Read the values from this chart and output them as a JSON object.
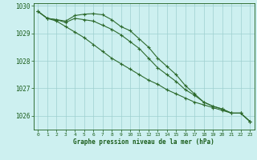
{
  "x": [
    0,
    1,
    2,
    3,
    4,
    5,
    6,
    7,
    8,
    9,
    10,
    11,
    12,
    13,
    14,
    15,
    16,
    17,
    18,
    19,
    20,
    21,
    22,
    23
  ],
  "line1": [
    1029.8,
    1029.55,
    1029.5,
    1029.45,
    1029.65,
    1029.7,
    1029.72,
    1029.68,
    1029.5,
    1029.25,
    1029.1,
    1028.8,
    1028.5,
    1028.1,
    1027.8,
    1027.5,
    1027.1,
    1026.8,
    1026.5,
    1026.35,
    1026.25,
    1026.1,
    1026.1,
    1025.8
  ],
  "line2": [
    1029.8,
    1029.55,
    1029.5,
    1029.4,
    1029.55,
    1029.5,
    1029.45,
    1029.3,
    1029.15,
    1028.95,
    1028.7,
    1028.45,
    1028.1,
    1027.75,
    1027.5,
    1027.25,
    1026.95,
    1026.75,
    1026.5,
    1026.35,
    1026.25,
    1026.1,
    1026.1,
    1025.8
  ],
  "line3": [
    1029.8,
    1029.55,
    1029.45,
    1029.25,
    1029.05,
    1028.85,
    1028.6,
    1028.35,
    1028.1,
    1027.9,
    1027.7,
    1027.5,
    1027.3,
    1027.15,
    1026.95,
    1026.8,
    1026.65,
    1026.5,
    1026.4,
    1026.3,
    1026.2,
    1026.1,
    1026.1,
    1025.8
  ],
  "line_color": "#2d6a2d",
  "bg_color": "#cdf0f0",
  "grid_color": "#9fcfcf",
  "label_color": "#1a5c1a",
  "xlabel": "Graphe pression niveau de la mer (hPa)",
  "ylim_min": 1025.5,
  "ylim_max": 1030.1,
  "yticks": [
    1026,
    1027,
    1028,
    1029,
    1030
  ],
  "xticks": [
    0,
    1,
    2,
    3,
    4,
    5,
    6,
    7,
    8,
    9,
    10,
    11,
    12,
    13,
    14,
    15,
    16,
    17,
    18,
    19,
    20,
    21,
    22,
    23
  ],
  "xticklabels": [
    "0",
    "1",
    "2",
    "3",
    "4",
    "5",
    "6",
    "7",
    "8",
    "9",
    "10",
    "11",
    "12",
    "13",
    "14",
    "15",
    "16",
    "17",
    "18",
    "19",
    "20",
    "21",
    "22",
    "23"
  ]
}
